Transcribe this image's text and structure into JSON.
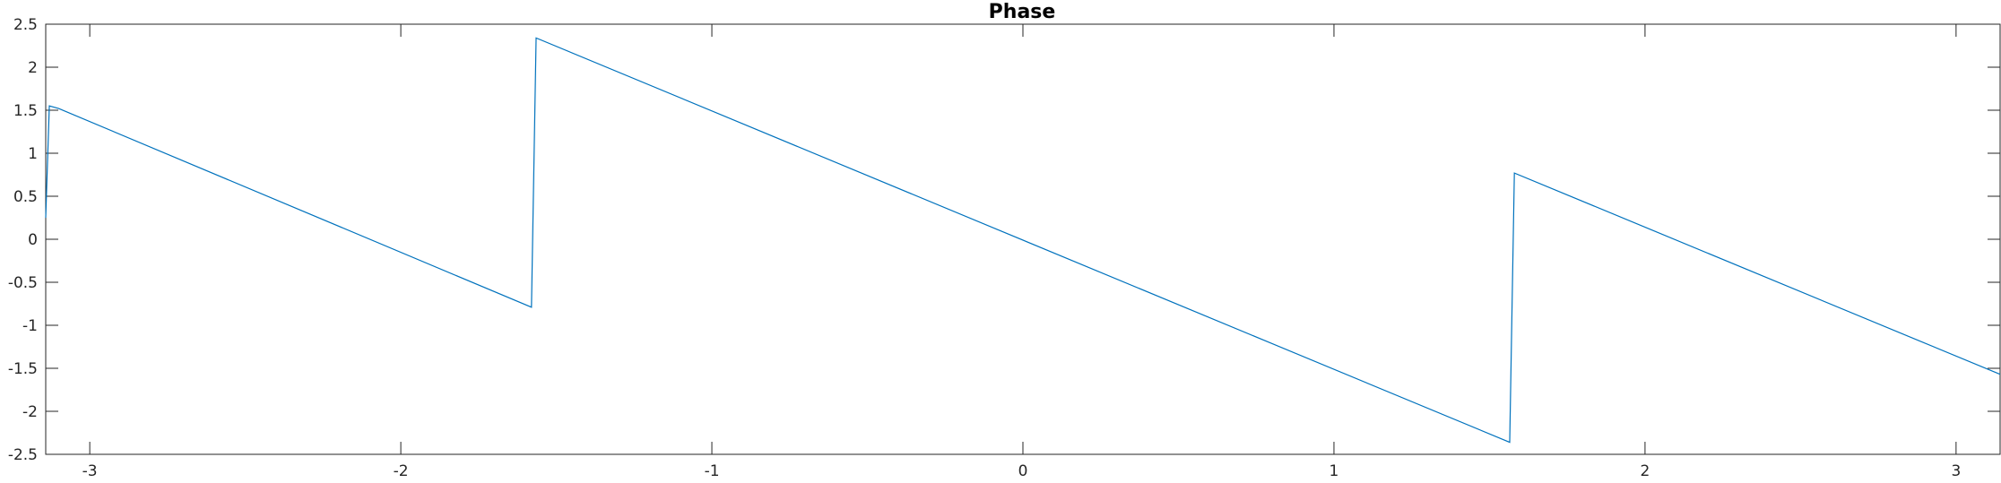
{
  "chart_data": {
    "type": "line",
    "title": "Phase",
    "xlabel": "",
    "ylabel": "",
    "xlim": [
      -3.14159,
      3.14159
    ],
    "ylim": [
      -2.5,
      2.5
    ],
    "grid": false,
    "x_ticks": [
      -3,
      -2,
      -1,
      0,
      1,
      2,
      3
    ],
    "x_tick_labels": [
      "-3",
      "-2",
      "-1",
      "0",
      "1",
      "2",
      "3"
    ],
    "y_ticks": [
      2.5,
      2,
      1.5,
      1,
      0.5,
      0,
      -0.5,
      -1,
      -1.5,
      -2,
      -2.5
    ],
    "y_tick_labels": [
      "2.5",
      "2",
      "1.5",
      "1",
      "0.5",
      "0",
      "-0.5",
      "-1",
      "-1.5",
      "-2",
      "-2.5"
    ],
    "series": [
      {
        "color": "#0072BD",
        "points": [
          [
            -3.1416,
            0.25
          ],
          [
            -3.13,
            1.55
          ],
          [
            -3.1,
            1.52
          ],
          [
            -1.58,
            -0.79
          ],
          [
            -1.565,
            2.34
          ],
          [
            1.565,
            -2.36
          ],
          [
            1.58,
            0.77
          ],
          [
            3.1416,
            -1.57
          ]
        ]
      }
    ]
  }
}
